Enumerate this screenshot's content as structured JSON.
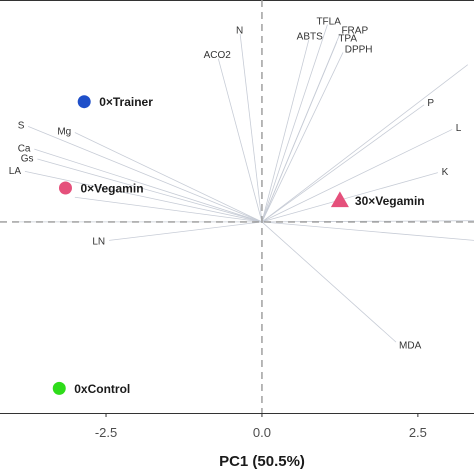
{
  "chart_data": {
    "type": "scatter",
    "subtype": "pca-biplot",
    "xlabel": "PC1 (50.5%)",
    "ylabel": "",
    "xlim": [
      -4.2,
      3.4
    ],
    "ylim": [
      -3.1,
      3.6
    ],
    "x_ticks": [
      {
        "value": -2.5,
        "label": "-2.5"
      },
      {
        "value": 0,
        "label": "0.0"
      },
      {
        "value": 2.5,
        "label": "2.5"
      }
    ],
    "reference_lines": {
      "x": 0,
      "y": 0,
      "style": "dashed",
      "color": "#999999"
    },
    "grid": false,
    "loading_color": "#c7ccd6",
    "groups": [
      {
        "name": "0×Trainer",
        "x": -2.85,
        "y": 1.95,
        "marker": "circle",
        "color": "#1f4fc9"
      },
      {
        "name": "0×Vegamin",
        "x": -3.15,
        "y": 0.55,
        "marker": "circle",
        "color": "#e5507b"
      },
      {
        "name": "30×Vegamin",
        "x": 1.25,
        "y": 0.35,
        "marker": "triangle",
        "color": "#e5507b"
      },
      {
        "name": "0xControl",
        "x": -3.25,
        "y": -2.7,
        "marker": "circle",
        "color": "#2edc1a"
      }
    ],
    "loadings": [
      {
        "name": "N",
        "x": -0.35,
        "y": 3.05
      },
      {
        "name": "ACO2",
        "x": -0.7,
        "y": 2.65
      },
      {
        "name": "TFLA",
        "x": 1.05,
        "y": 3.2
      },
      {
        "name": "FRAP",
        "x": 1.25,
        "y": 3.05
      },
      {
        "name": "ABTS",
        "x": 0.75,
        "y": 2.95
      },
      {
        "name": "TPA",
        "x": 1.2,
        "y": 2.92
      },
      {
        "name": "DPPH",
        "x": 1.3,
        "y": 2.75
      },
      {
        "name": "P",
        "x": 2.6,
        "y": 1.9
      },
      {
        "name": "L",
        "x": 3.05,
        "y": 1.5
      },
      {
        "name": "K",
        "x": 2.82,
        "y": 0.8
      },
      {
        "name": "S",
        "x": -3.75,
        "y": 1.55
      },
      {
        "name": "Mg",
        "x": -3.0,
        "y": 1.45
      },
      {
        "name": "Ca",
        "x": -3.65,
        "y": 1.18
      },
      {
        "name": "Gs",
        "x": -3.6,
        "y": 1.02
      },
      {
        "name": "LA",
        "x": -3.8,
        "y": 0.82
      },
      {
        "name": "LN",
        "x": -2.45,
        "y": -0.3
      },
      {
        "name": "MDA",
        "x": 2.15,
        "y": -1.95
      }
    ],
    "unlabeled_loadings": [
      {
        "x": 3.3,
        "y": 2.55
      },
      {
        "x": 3.4,
        "y": 0.02
      },
      {
        "x": 3.4,
        "y": -0.3
      },
      {
        "x": -3.9,
        "y": 0.0
      },
      {
        "x": -3.0,
        "y": 0.4
      }
    ]
  }
}
